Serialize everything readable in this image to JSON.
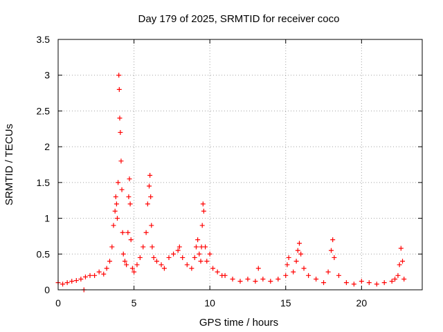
{
  "chart_data": {
    "type": "scatter",
    "title": "Day 179 of 2025, SRMTID for receiver coco",
    "xlabel": "GPS time / hours",
    "ylabel": "SRMTID / TECUs",
    "xlim": [
      0,
      24
    ],
    "ylim": [
      0,
      3.5
    ],
    "x_ticks": [
      0,
      5,
      10,
      15,
      20
    ],
    "x_tick_labels": [
      "0",
      "5",
      "10",
      "15",
      "20"
    ],
    "y_ticks": [
      0,
      0.5,
      1,
      1.5,
      2,
      2.5,
      3,
      3.5
    ],
    "y_tick_labels": [
      "0",
      "0.5",
      "1",
      "1.5",
      "2",
      "2.5",
      "3",
      "3.5"
    ],
    "grid": true,
    "marker": "plus",
    "series": [
      {
        "name": "SRMTID",
        "color": "#ff0000",
        "x": [
          0.0,
          0.3,
          0.6,
          0.9,
          1.2,
          1.5,
          1.7,
          1.8,
          2.1,
          2.4,
          2.7,
          3.0,
          3.2,
          3.4,
          3.55,
          3.65,
          3.75,
          3.8,
          3.85,
          3.9,
          3.95,
          4.0,
          4.03,
          4.06,
          4.1,
          4.15,
          4.2,
          4.25,
          4.3,
          4.4,
          4.5,
          4.6,
          4.65,
          4.7,
          4.75,
          4.8,
          4.9,
          5.0,
          5.2,
          5.4,
          5.6,
          5.8,
          5.9,
          6.0,
          6.05,
          6.1,
          6.15,
          6.2,
          6.3,
          6.5,
          6.8,
          7.0,
          7.3,
          7.6,
          7.9,
          8.0,
          8.2,
          8.5,
          8.8,
          9.0,
          9.1,
          9.2,
          9.3,
          9.4,
          9.45,
          9.5,
          9.55,
          9.6,
          9.7,
          9.8,
          10.0,
          10.2,
          10.5,
          10.8,
          11.0,
          11.5,
          12.0,
          12.5,
          13.0,
          13.2,
          13.5,
          14.0,
          14.5,
          15.0,
          15.1,
          15.2,
          15.5,
          15.7,
          15.8,
          15.9,
          16.0,
          16.2,
          16.5,
          17.0,
          17.5,
          17.8,
          18.0,
          18.1,
          18.2,
          18.5,
          19.0,
          19.5,
          20.0,
          20.5,
          21.0,
          21.5,
          22.0,
          22.2,
          22.4,
          22.5,
          22.6,
          22.7,
          22.8
        ],
        "y": [
          0.1,
          0.08,
          0.1,
          0.12,
          0.13,
          0.15,
          0.0,
          0.18,
          0.2,
          0.2,
          0.25,
          0.22,
          0.3,
          0.4,
          0.6,
          0.9,
          1.1,
          1.3,
          1.2,
          1.0,
          1.5,
          3.0,
          2.8,
          2.4,
          2.2,
          1.8,
          1.4,
          0.8,
          0.5,
          0.4,
          0.35,
          0.8,
          1.3,
          1.55,
          1.2,
          0.7,
          0.3,
          0.25,
          0.35,
          0.45,
          0.6,
          0.8,
          1.2,
          1.45,
          1.6,
          1.3,
          0.9,
          0.6,
          0.45,
          0.4,
          0.35,
          0.3,
          0.45,
          0.5,
          0.55,
          0.6,
          0.45,
          0.35,
          0.3,
          0.45,
          0.6,
          0.7,
          0.5,
          0.4,
          0.6,
          0.9,
          1.2,
          1.1,
          0.6,
          0.4,
          0.5,
          0.3,
          0.25,
          0.2,
          0.2,
          0.15,
          0.12,
          0.15,
          0.12,
          0.3,
          0.15,
          0.12,
          0.15,
          0.2,
          0.35,
          0.45,
          0.25,
          0.4,
          0.55,
          0.65,
          0.5,
          0.3,
          0.2,
          0.15,
          0.1,
          0.25,
          0.55,
          0.7,
          0.45,
          0.2,
          0.1,
          0.08,
          0.12,
          0.1,
          0.08,
          0.1,
          0.12,
          0.15,
          0.2,
          0.35,
          0.58,
          0.4,
          0.15
        ]
      }
    ]
  }
}
